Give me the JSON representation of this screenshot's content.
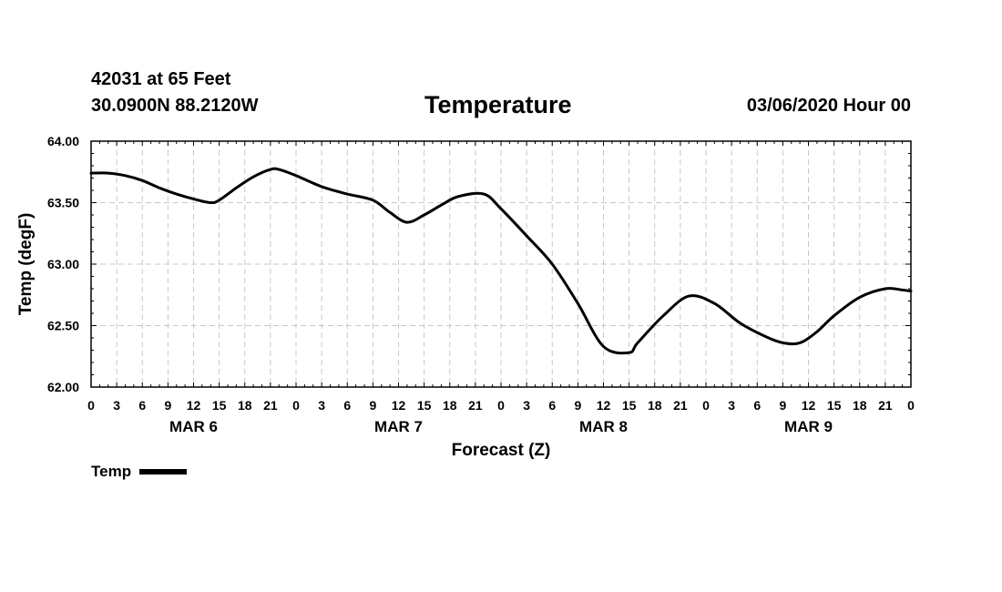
{
  "header": {
    "station": "42031 at 65 Feet",
    "coords": "30.0900N 88.2120W",
    "title": "Temperature",
    "timestamp": "03/06/2020 Hour 00"
  },
  "chart_data": {
    "type": "line",
    "title": "Temperature",
    "xlabel": "Forecast (Z)",
    "ylabel": "Temp (degF)",
    "x_unit": "hours from 03/06/2020 00Z",
    "xlim": [
      0,
      96
    ],
    "ylim": [
      62.0,
      64.0
    ],
    "grid": true,
    "y_ticks": [
      "62.00",
      "62.50",
      "63.00",
      "63.50",
      "64.00"
    ],
    "x_tick_labels": [
      "0",
      "3",
      "6",
      "9",
      "12",
      "15",
      "18",
      "21",
      "0",
      "3",
      "6",
      "9",
      "12",
      "15",
      "18",
      "21",
      "0",
      "3",
      "6",
      "9",
      "12",
      "15",
      "18",
      "21",
      "0",
      "3",
      "6",
      "9",
      "12",
      "15",
      "18",
      "21",
      "0"
    ],
    "day_labels": [
      "MAR 6",
      "MAR 7",
      "MAR 8",
      "MAR 9"
    ],
    "legend": {
      "label": "Temp",
      "position": "bottom-left"
    },
    "series": [
      {
        "name": "Temp",
        "x": [
          0,
          2,
          4,
          6,
          8,
          10,
          12,
          14,
          15,
          17,
          19,
          21,
          22,
          24,
          27,
          30,
          33,
          35,
          37,
          39,
          41,
          43,
          46,
          48,
          51,
          54,
          57,
          60,
          63,
          64,
          67,
          70,
          73,
          76,
          79,
          81,
          83,
          85,
          87,
          90,
          93,
          95,
          96
        ],
        "values": [
          63.74,
          63.74,
          63.72,
          63.68,
          63.62,
          63.57,
          63.53,
          63.5,
          63.52,
          63.62,
          63.71,
          63.77,
          63.77,
          63.72,
          63.63,
          63.57,
          63.52,
          63.42,
          63.34,
          63.4,
          63.48,
          63.55,
          63.57,
          63.45,
          63.23,
          63.0,
          62.68,
          62.33,
          62.28,
          62.36,
          62.58,
          62.74,
          62.68,
          62.52,
          62.41,
          62.36,
          62.36,
          62.45,
          62.58,
          62.73,
          62.8,
          62.79,
          62.78
        ]
      }
    ]
  }
}
